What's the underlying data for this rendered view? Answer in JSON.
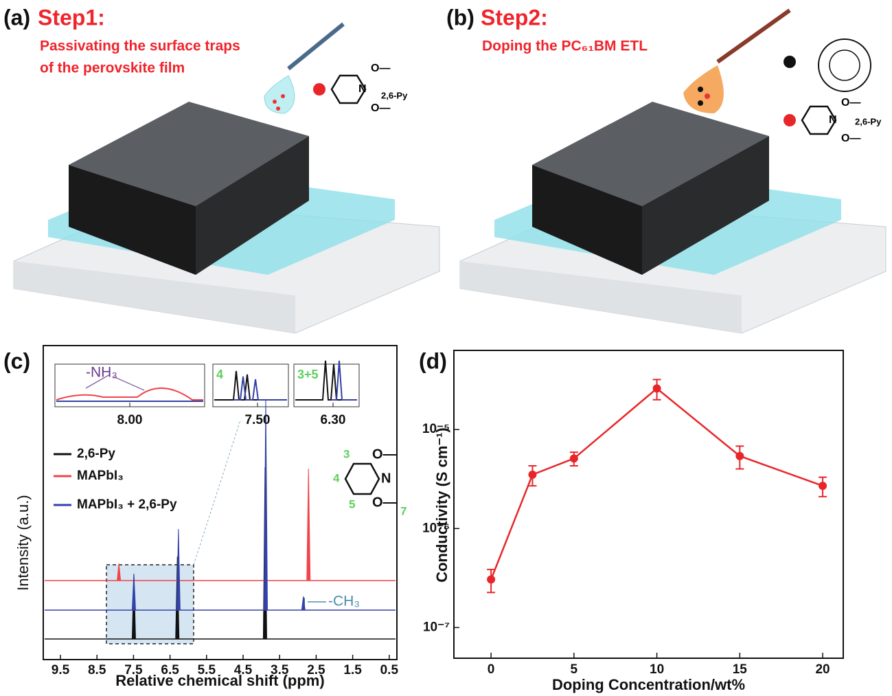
{
  "panels": [
    {
      "label": "(a)",
      "heading": "Step1:",
      "lines": [
        "Passivating the surface traps",
        "of the perovskite film"
      ],
      "legend": [
        {
          "label": "2,6-Py",
          "atoms": [
            "O—",
            "N",
            "O—"
          ]
        }
      ]
    },
    {
      "label": "(b)",
      "heading": "Step2:",
      "lines": [
        "Doping the PC₆₁BM ETL"
      ],
      "legend": [
        {
          "label": "2,6-Py",
          "atoms": [
            "O—",
            "N",
            "O—"
          ]
        }
      ]
    }
  ],
  "chart_data": [
    {
      "type": "spectrum",
      "panel_label": "(c)",
      "xlabel": "Relative chemical shift (ppm)",
      "ylabel": "Intensity (a.u.)",
      "xlim": [
        9.97,
        0.29
      ],
      "xticks": [
        9.5,
        8.5,
        7.5,
        6.5,
        5.5,
        4.5,
        3.5,
        2.5,
        1.5,
        0.5
      ],
      "series": [
        {
          "name": "2,6-Py",
          "color": "#111111",
          "x": [
            7.49,
            6.3,
            3.9
          ],
          "values": [
            95,
            120,
            250
          ]
        },
        {
          "name": "MAPbI₃",
          "color": "#f0444a",
          "x": [
            7.9,
            2.71
          ],
          "values": [
            25,
            163
          ]
        },
        {
          "name": "MAPbI₃ + 2,6-Py",
          "color": "#3341a8",
          "x": [
            7.49,
            6.27,
            3.88,
            2.85
          ],
          "values": [
            53,
            118,
            306,
            20
          ]
        }
      ],
      "inset_ticks": [
        {
          "value": 8,
          "label": "8.00"
        },
        {
          "value": 7.5,
          "label": "7.50"
        },
        {
          "value": 6.3,
          "label": "6.30"
        }
      ],
      "annotations": {
        "nh3": "-NH₃",
        "ch3": "-CH₃",
        "inset_2": "4",
        "inset_3": "3+5",
        "atoms": [
          "O—",
          "N",
          "O—"
        ],
        "positions": [
          "3",
          "4",
          "5",
          "7"
        ]
      }
    },
    {
      "type": "line",
      "panel_label": "(d)",
      "xlabel": "Doping Concentration/wt%",
      "ylabel": "Conductivity (S cm⁻¹)",
      "x": [
        0,
        2.5,
        5,
        10,
        15,
        20
      ],
      "values": [
        3.06e-07,
        3.5e-06,
        5.1e-06,
        2.6e-05,
        5.4e-06,
        2.7e-06
      ],
      "errors": [
        8e-08,
        8e-07,
        8e-07,
        6e-06,
        1.4e-06,
        6e-07
      ],
      "color": "#e8262a",
      "xlim": [
        -2.24,
        21.24
      ],
      "xticks": [
        0,
        5,
        10,
        15,
        20
      ],
      "ylim": [
        4.9e-08,
        6.3e-05
      ],
      "yscale": "log",
      "yticks": [
        {
          "value": 1e-07,
          "label": "10⁻⁷"
        },
        {
          "value": 1e-06,
          "label": "10⁻⁶"
        },
        {
          "value": 1e-05,
          "label": "10⁻⁵"
        }
      ]
    }
  ]
}
